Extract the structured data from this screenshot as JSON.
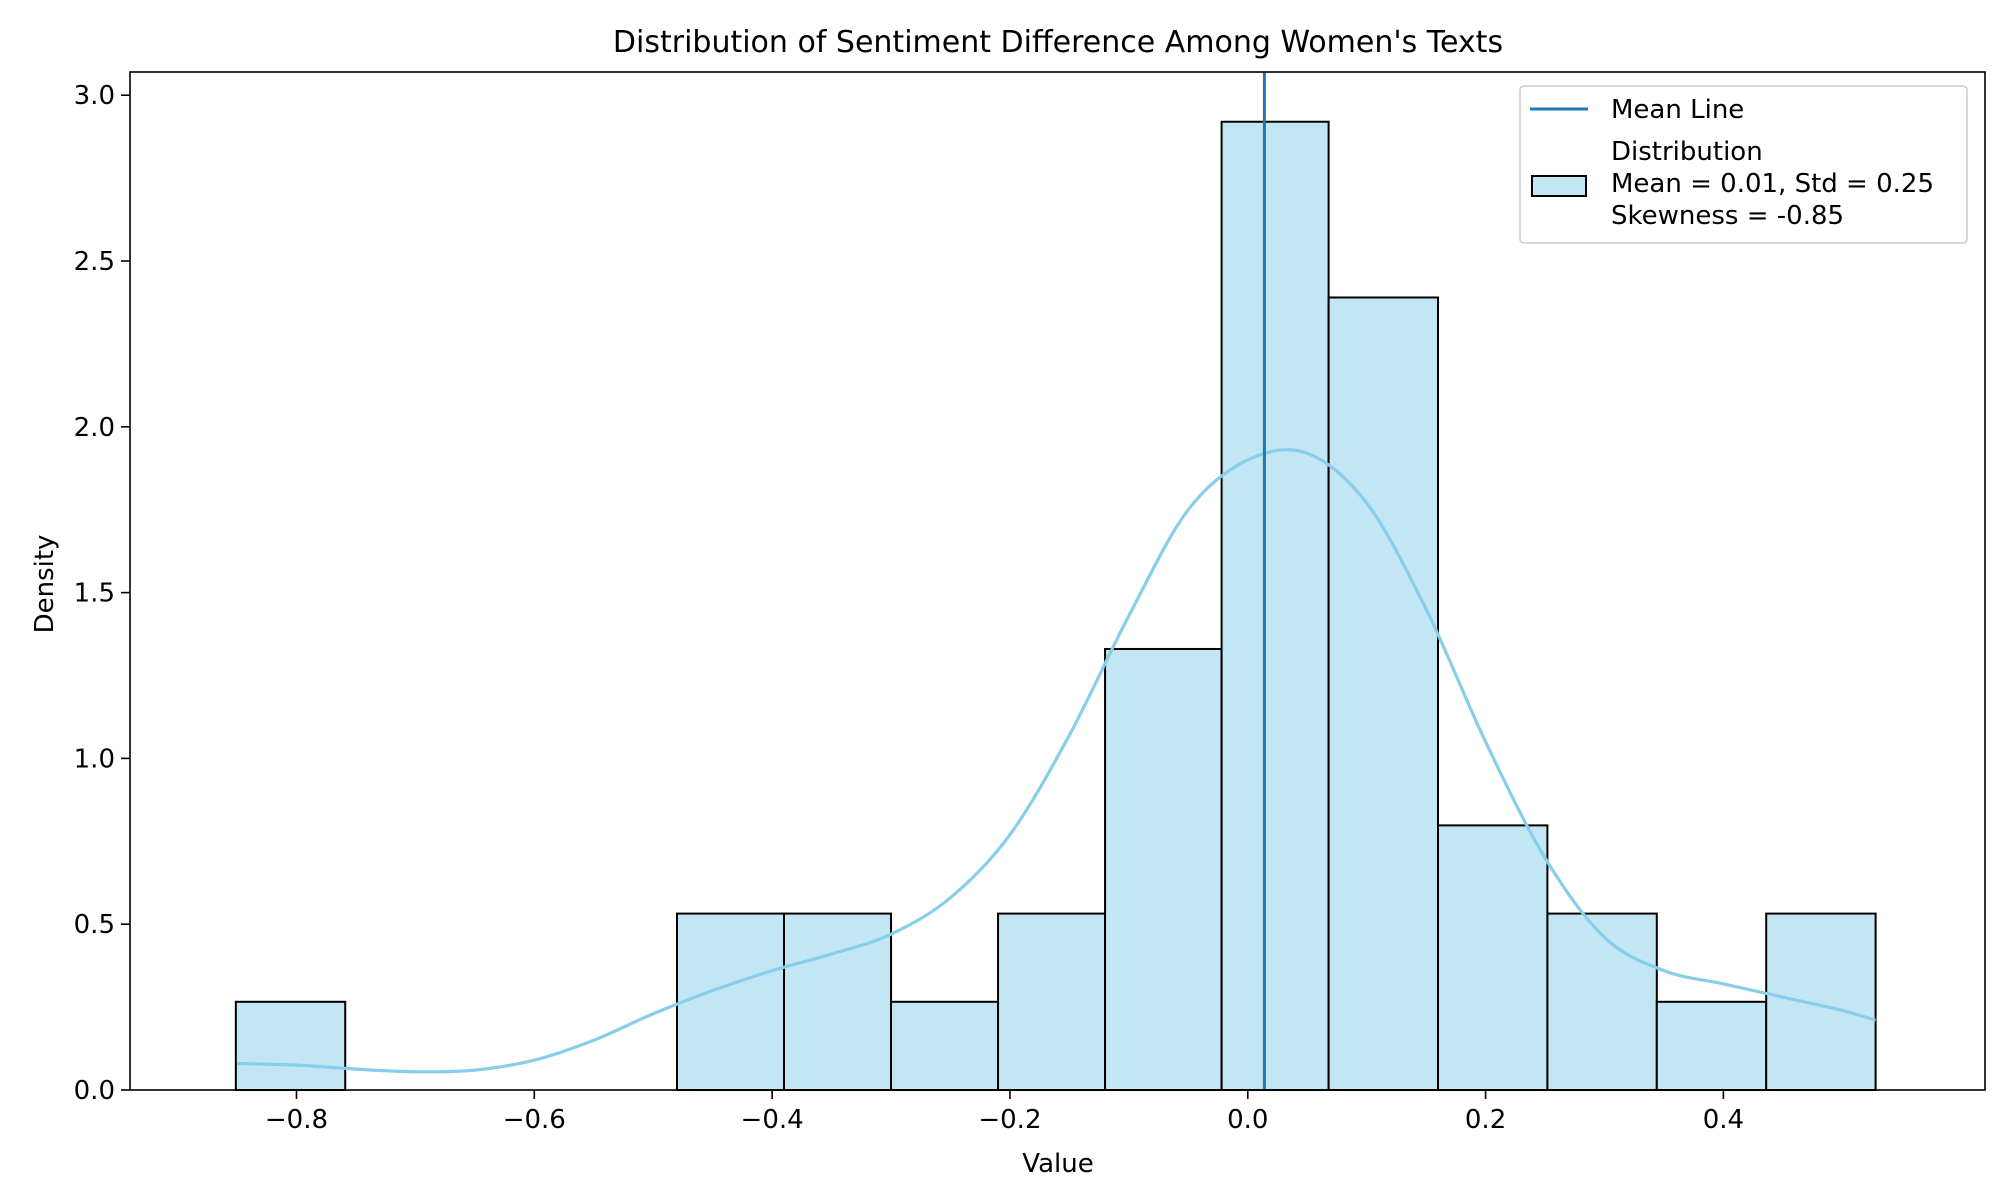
{
  "chart_data": {
    "type": "histogram",
    "title": "Distribution of Sentiment Difference Among Women's Texts",
    "xlabel": "Value",
    "ylabel": "Density",
    "xlim": [
      -0.94,
      0.62
    ],
    "ylim": [
      0.0,
      3.07
    ],
    "xticks": [
      -0.8,
      -0.6,
      -0.4,
      -0.2,
      0.0,
      0.2,
      0.4
    ],
    "xtick_labels": [
      "−0.8",
      "−0.6",
      "−0.4",
      "−0.2",
      "0.0",
      "0.2",
      "0.4"
    ],
    "yticks": [
      0.0,
      0.5,
      1.0,
      1.5,
      2.0,
      2.5,
      3.0
    ],
    "ytick_labels": [
      "0.0",
      "0.5",
      "1.0",
      "1.5",
      "2.0",
      "2.5",
      "3.0"
    ],
    "grid": false,
    "legend_position": "top-right",
    "bins": [
      {
        "x0": -0.851,
        "x1": -0.759,
        "density": 0.266
      },
      {
        "x0": -0.759,
        "x1": -0.67,
        "density": 0.0
      },
      {
        "x0": -0.67,
        "x1": -0.58,
        "density": 0.0
      },
      {
        "x0": -0.58,
        "x1": -0.48,
        "density": 0.0
      },
      {
        "x0": -0.48,
        "x1": -0.39,
        "density": 0.532
      },
      {
        "x0": -0.39,
        "x1": -0.3,
        "density": 0.532
      },
      {
        "x0": -0.3,
        "x1": -0.21,
        "density": 0.266
      },
      {
        "x0": -0.21,
        "x1": -0.12,
        "density": 0.532
      },
      {
        "x0": -0.12,
        "x1": -0.022,
        "density": 1.33
      },
      {
        "x0": -0.022,
        "x1": 0.068,
        "density": 2.92
      },
      {
        "x0": 0.068,
        "x1": 0.16,
        "density": 2.39
      },
      {
        "x0": 0.16,
        "x1": 0.252,
        "density": 0.798
      },
      {
        "x0": 0.252,
        "x1": 0.344,
        "density": 0.532
      },
      {
        "x0": 0.344,
        "x1": 0.436,
        "density": 0.266
      },
      {
        "x0": 0.436,
        "x1": 0.528,
        "density": 0.532
      }
    ],
    "kde": {
      "x": [
        -0.85,
        -0.8,
        -0.75,
        -0.7,
        -0.65,
        -0.6,
        -0.55,
        -0.5,
        -0.45,
        -0.4,
        -0.35,
        -0.3,
        -0.25,
        -0.2,
        -0.15,
        -0.1,
        -0.05,
        0.0,
        0.05,
        0.1,
        0.15,
        0.2,
        0.25,
        0.3,
        0.35,
        0.4,
        0.45,
        0.5,
        0.528
      ],
      "y": [
        0.08,
        0.075,
        0.063,
        0.055,
        0.06,
        0.09,
        0.15,
        0.23,
        0.3,
        0.36,
        0.41,
        0.47,
        0.58,
        0.77,
        1.07,
        1.43,
        1.75,
        1.9,
        1.92,
        1.77,
        1.45,
        1.05,
        0.7,
        0.46,
        0.36,
        0.32,
        0.28,
        0.24,
        0.21
      ]
    },
    "mean_line": {
      "x": 0.014
    },
    "legend": [
      {
        "label": "Mean Line",
        "kind": "line",
        "color": "#1f77b4"
      },
      {
        "label_lines": [
          "Distribution",
          "Mean = 0.01, Std = 0.25",
          "Skewness = -0.85"
        ],
        "kind": "patch",
        "color": "#c2e6f4"
      }
    ],
    "colors": {
      "bar_fill": "#c2e6f4",
      "bar_edge": "#000000",
      "kde_line": "#87ceeb",
      "mean_line": "#1f77b4",
      "legend_edge": "#cccccc"
    }
  }
}
